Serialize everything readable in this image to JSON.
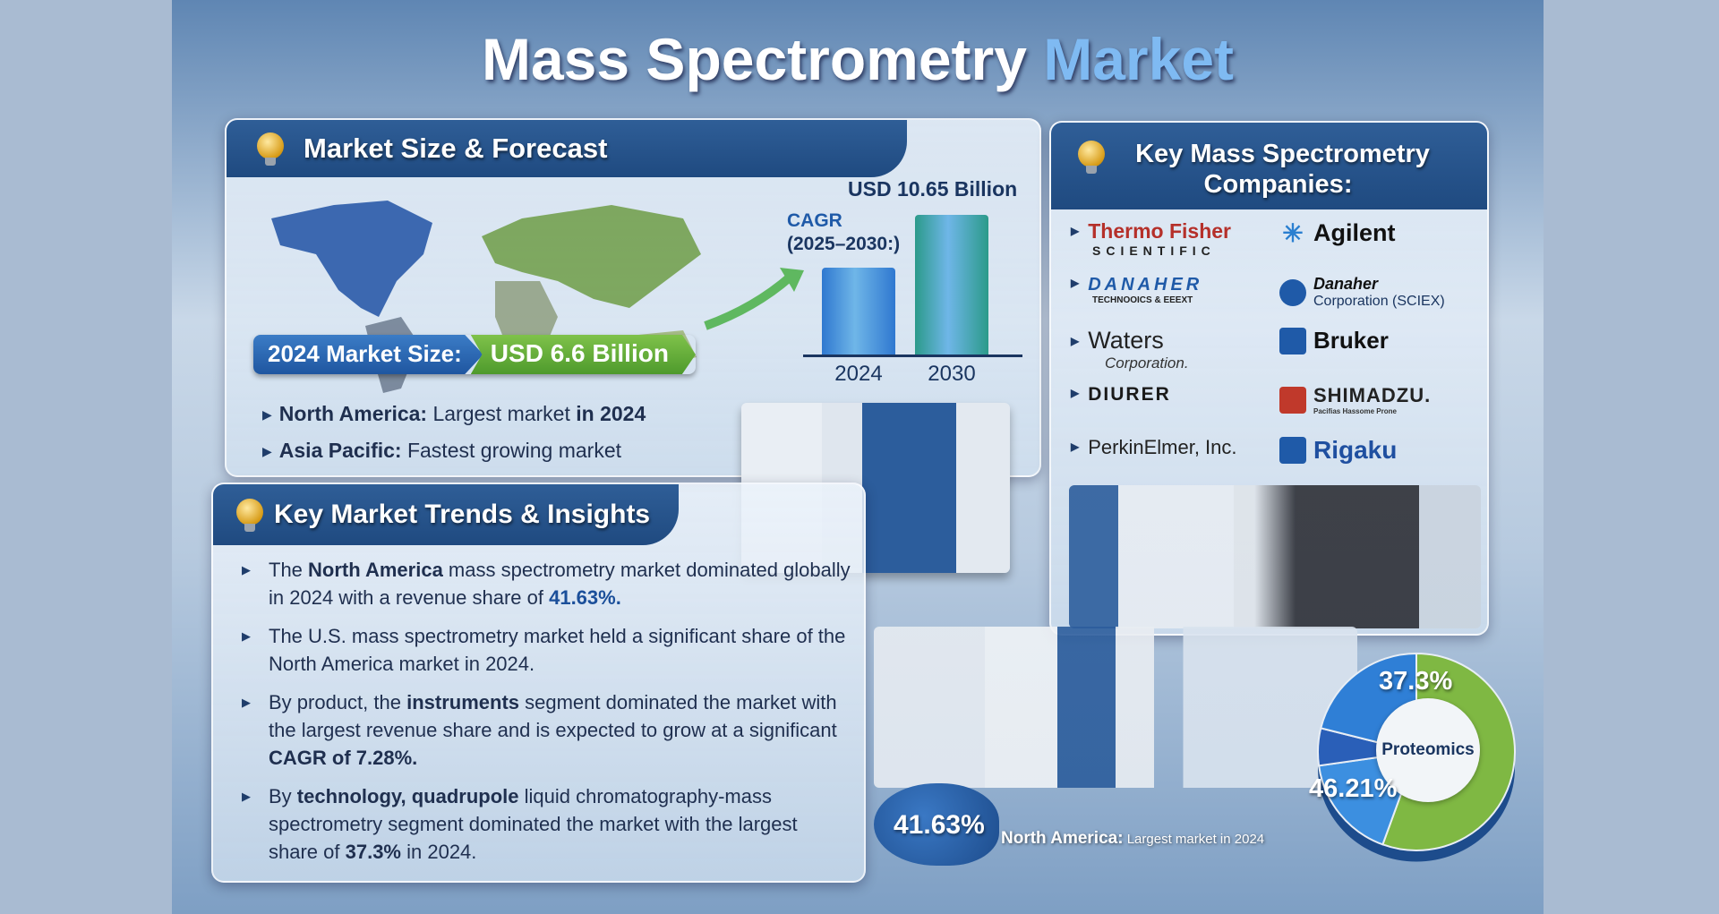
{
  "title": {
    "main": "Mass Spectrometry",
    "accent": "Market"
  },
  "market_size": {
    "heading": "Market Size & Forecast",
    "pill_label": "2024 Market Size:",
    "pill_value": "USD 6.6 Billion",
    "forecast_value": "USD 10.65 Billion",
    "cagr_label": "CAGR",
    "cagr_period": "(2025–2030:)",
    "bars": [
      {
        "year": "2024",
        "value": 6.6,
        "color": "#2f78d0"
      },
      {
        "year": "2030",
        "value": 10.65,
        "color": "#2b9a8a"
      }
    ],
    "bullets": [
      {
        "bold": "North America:",
        "text": " Largest market ",
        "bold2": "in 2024"
      },
      {
        "bold": "Asia Pacific:",
        "text": " Fastest growing market",
        "bold2": ""
      }
    ]
  },
  "companies": {
    "heading_line1": "Key Mass Spectrometry",
    "heading_line2": "Companies:",
    "left": [
      {
        "name": "Thermo Fisher",
        "sub": "SCIENTIFIC"
      },
      {
        "name": "DANAHER",
        "sub": "TECHNOOICS & EEEXT"
      },
      {
        "name": "Waters",
        "sub": "Corporation."
      },
      {
        "name": "DIURER",
        "sub": ""
      },
      {
        "name": "PerkinElmer, Inc.",
        "sub": ""
      }
    ],
    "right": [
      {
        "name": "Agilent",
        "sub": ""
      },
      {
        "name": "Danaher",
        "sub": "Corporation (SCIEX)"
      },
      {
        "name": "Bruker",
        "sub": ""
      },
      {
        "name": "SHIMADZU.",
        "sub": "Pacifias Hassome Prone"
      },
      {
        "name": "Rigaku",
        "sub": ""
      }
    ]
  },
  "trends": {
    "heading": "Key Market Trends & Insights",
    "items": [
      {
        "parts": [
          [
            "The ",
            0
          ],
          [
            "North America",
            1
          ],
          [
            " mass spectrometry market dominated globally in 2024 with a revenue share of ",
            0
          ],
          [
            "41.63%.",
            2
          ]
        ]
      },
      {
        "parts": [
          [
            "The U.S. mass spectrometry market held a significant share of the North America market in 2024.",
            0
          ]
        ]
      },
      {
        "parts": [
          [
            "By product, the ",
            0
          ],
          [
            "instruments",
            1
          ],
          [
            " segment dominated the market with the largest revenue share and is expected to grow at a significant ",
            0
          ],
          [
            "CAGR of 7.28%.",
            1
          ]
        ]
      },
      {
        "parts": [
          [
            "By ",
            0
          ],
          [
            "technology, quadrupole",
            1
          ],
          [
            " liquid chromatography-mass spectrometry segment dominated the market with the largest share of ",
            0
          ],
          [
            "37.3%",
            1
          ],
          [
            " in 2024.",
            0
          ]
        ]
      }
    ]
  },
  "region_badge": {
    "value": "41.63%",
    "bold": "North America:",
    "text": " Largest market in 2024"
  },
  "pie": {
    "center_label": "Proteomics",
    "labels": [
      "37.3%",
      "46.21%"
    ],
    "colors": [
      "#2f7fd6",
      "#7fb843",
      "#2a5fb8",
      "#3c8fe0"
    ]
  },
  "colors": {
    "header": "#1f4a80",
    "pill_blue": "#2a66b0",
    "pill_green": "#5fa634",
    "accent": "#7fbaf2"
  }
}
